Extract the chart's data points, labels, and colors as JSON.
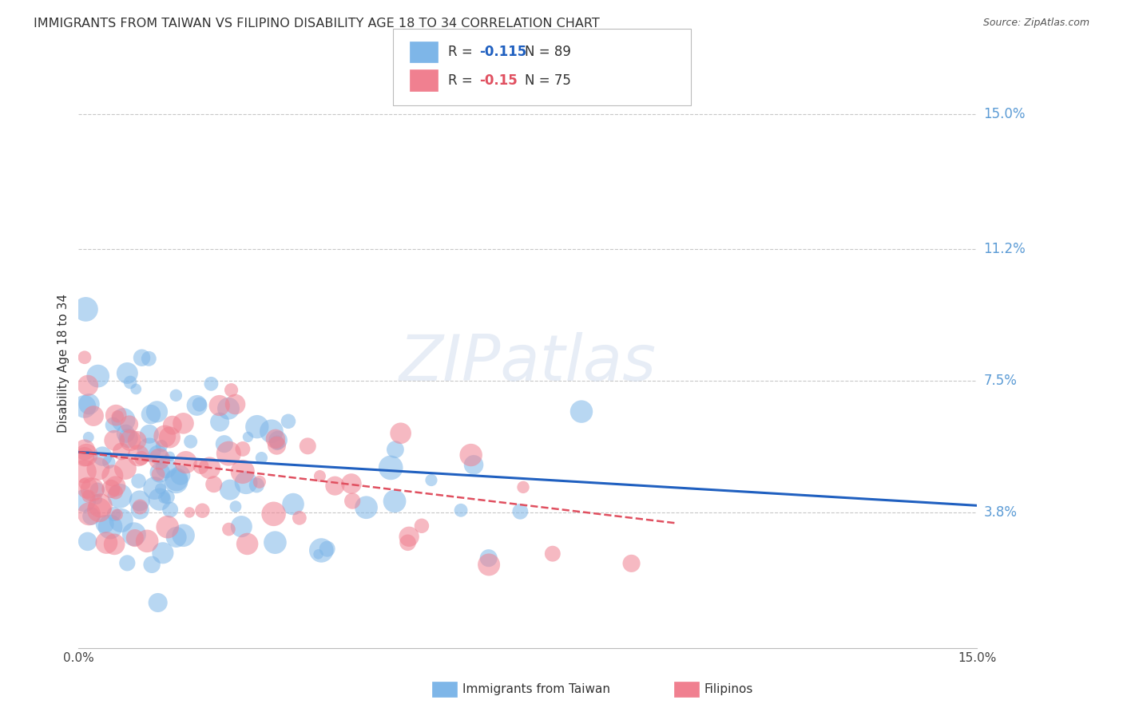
{
  "title": "IMMIGRANTS FROM TAIWAN VS FILIPINO DISABILITY AGE 18 TO 34 CORRELATION CHART",
  "source": "Source: ZipAtlas.com",
  "ylabel": "Disability Age 18 to 34",
  "y_ticks": [
    0.038,
    0.075,
    0.112,
    0.15
  ],
  "y_tick_labels": [
    "3.8%",
    "7.5%",
    "11.2%",
    "15.0%"
  ],
  "x_range": [
    0.0,
    0.15
  ],
  "y_range": [
    0.0,
    0.16
  ],
  "R_taiwan": -0.115,
  "N_taiwan": 89,
  "R_filipino": -0.15,
  "N_filipino": 75,
  "color_taiwan": "#7EB6E8",
  "color_filipino": "#F08090",
  "line_color_taiwan": "#2060C0",
  "line_color_filipino": "#E05060",
  "watermark": "ZIPatlas",
  "background_color": "#FFFFFF",
  "grid_color": "#C8C8C8",
  "axis_label_color": "#5B9BD5",
  "title_color": "#333333",
  "source_color": "#555555"
}
